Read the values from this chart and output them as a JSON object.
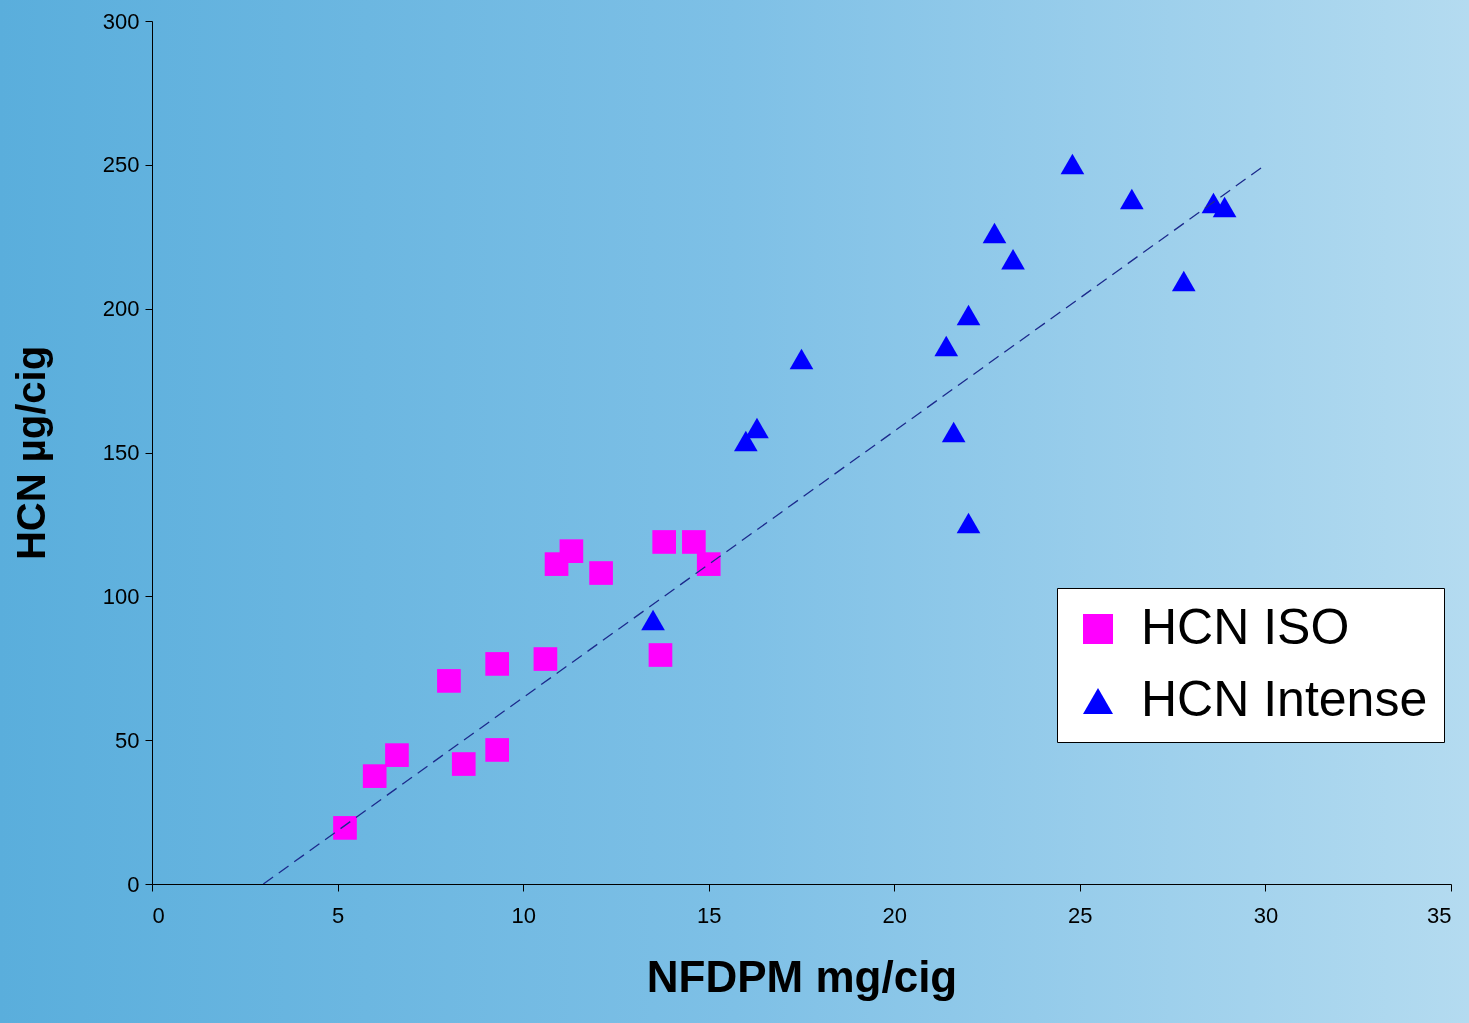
{
  "chart_data": {
    "type": "scatter",
    "xlabel": "NFDPM  mg/cig",
    "ylabel": "HCN    µg/cig",
    "xlim": [
      0,
      35
    ],
    "xticks": [
      0,
      5,
      10,
      15,
      20,
      25,
      30,
      35
    ],
    "ylim": [
      0,
      300
    ],
    "yticks": [
      0,
      50,
      100,
      150,
      200,
      250,
      300
    ],
    "grid": false,
    "legend": "right",
    "series": [
      {
        "name": "HCN ISO",
        "color": "#ff00ff",
        "marker": "square",
        "x": [
          5.2,
          6.0,
          6.6,
          8.0,
          8.4,
          9.3,
          9.3,
          10.6,
          10.9,
          11.3,
          12.1,
          13.8,
          13.7,
          14.6,
          15.0
        ],
        "values": [
          19.5,
          37.5,
          44.8,
          70.6,
          41.7,
          76.5,
          46.6,
          78.2,
          111.2,
          115.7,
          108.1,
          118.9,
          79.6,
          118.9,
          111.2
        ]
      },
      {
        "name": "HCN Intense",
        "color": "#0000ff",
        "marker": "triangle",
        "x": [
          13.5,
          16.0,
          16.3,
          17.5,
          21.4,
          22.0,
          21.6,
          22.0,
          22.7,
          23.2,
          24.8,
          26.4,
          27.8,
          28.6,
          28.9
        ],
        "values": [
          91.8,
          154,
          158.5,
          182.5,
          187,
          197.8,
          157.1,
          125.5,
          226.3,
          217.2,
          250.3,
          238.1,
          209.6,
          236.7,
          235.3
        ]
      },
      {
        "type": "line",
        "color": "#1c2a8c",
        "line_style": "dashed",
        "marker": "none",
        "x": [
          3,
          30
        ],
        "values": [
          0,
          250
        ]
      }
    ]
  }
}
